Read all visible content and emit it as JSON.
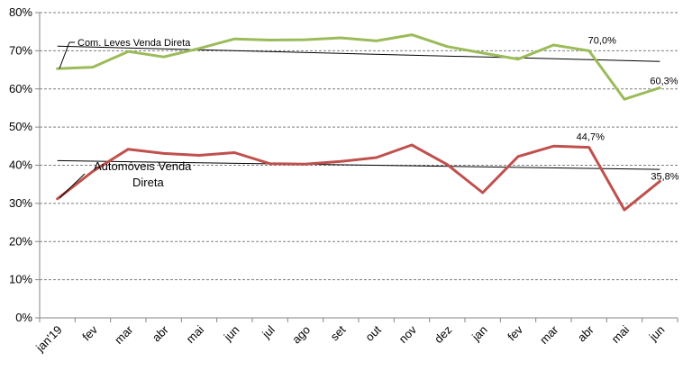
{
  "chart_data": {
    "type": "line",
    "categories": [
      "jan'19",
      "fev",
      "mar",
      "abr",
      "mai",
      "jun",
      "jul",
      "ago",
      "set",
      "out",
      "nov",
      "dez",
      "jan",
      "fev",
      "mar",
      "abr",
      "mai",
      "jun"
    ],
    "ylim": [
      0,
      80
    ],
    "yticks": [
      "0%",
      "10%",
      "20%",
      "30%",
      "40%",
      "50%",
      "60%",
      "70%",
      "80%"
    ],
    "grid": true,
    "series": [
      {
        "name": "Com. Leves Venda Direta",
        "color": "#9bbb59",
        "values": [
          65.3,
          65.7,
          69.8,
          68.4,
          70.6,
          73.1,
          72.8,
          72.9,
          73.4,
          72.6,
          74.2,
          71.1,
          69.4,
          67.8,
          71.5,
          70.0,
          57.3,
          60.3
        ],
        "trend": [
          71.2,
          67.2
        ]
      },
      {
        "name": "Automóveis Venda Direta",
        "color": "#c0504d",
        "values": [
          31.2,
          38.4,
          44.2,
          43.1,
          42.6,
          43.3,
          40.4,
          40.3,
          41.0,
          42.0,
          45.3,
          40.2,
          32.8,
          42.3,
          45.0,
          44.7,
          28.3,
          35.8
        ],
        "trend": [
          41.2,
          38.9
        ]
      }
    ],
    "data_labels": [
      {
        "text": "70,0%",
        "series": 0,
        "index": 15
      },
      {
        "text": "60,3%",
        "series": 0,
        "index": 17
      },
      {
        "text": "44,7%",
        "series": 1,
        "index": 15
      },
      {
        "text": "35,8%",
        "series": 1,
        "index": 17
      }
    ],
    "annotations": {
      "com_leves": "Com. Leves Venda Direta",
      "automoveis_line1": "Automóveis Venda",
      "automoveis_line2": "Direta"
    }
  }
}
